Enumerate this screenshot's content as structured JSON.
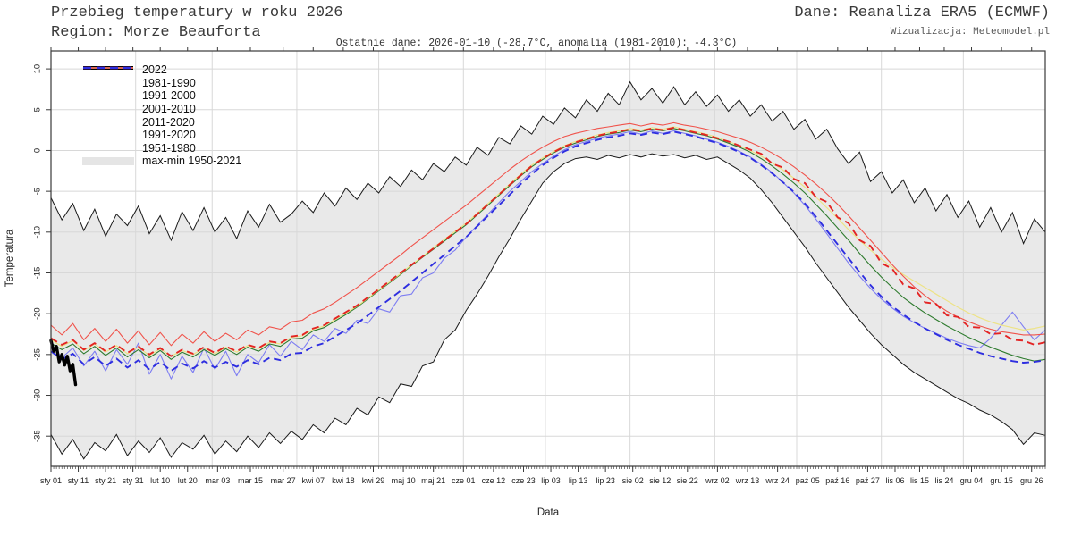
{
  "header": {
    "title": "Przebieg temperatury w roku 2026",
    "region": "Region: Morze Beauforta",
    "source": "Dane: Reanaliza ERA5 (ECMWF)",
    "visualization": "Wizualizacja: Meteomodel.pl",
    "subtitle": "Ostatnie dane: 2026-01-10 (-28.7°C, anomalia (1981-2010): -4.3°C)"
  },
  "chart_data": {
    "type": "line",
    "title": "Przebieg temperatury w roku 2026",
    "xlabel": "Data",
    "ylabel": "Temperatura",
    "ylim": [
      -38.7,
      12.2
    ],
    "x_unit": "day_of_year",
    "grid": true,
    "legend_position": "top-left",
    "y_ticks": [
      10,
      5,
      0,
      -5,
      -10,
      -15,
      -20,
      -25,
      -30,
      -35
    ],
    "x_ticks": [
      {
        "day": 1,
        "label": "sty 01"
      },
      {
        "day": 11,
        "label": "sty 11"
      },
      {
        "day": 21,
        "label": "sty 21"
      },
      {
        "day": 31,
        "label": "sty 31"
      },
      {
        "day": 41,
        "label": "lut 10"
      },
      {
        "day": 51,
        "label": "lut 20"
      },
      {
        "day": 62,
        "label": "mar 03"
      },
      {
        "day": 74,
        "label": "mar 15"
      },
      {
        "day": 86,
        "label": "mar 27"
      },
      {
        "day": 97,
        "label": "kwi 07"
      },
      {
        "day": 108,
        "label": "kwi 18"
      },
      {
        "day": 119,
        "label": "kwi 29"
      },
      {
        "day": 130,
        "label": "maj 10"
      },
      {
        "day": 141,
        "label": "maj 21"
      },
      {
        "day": 152,
        "label": "cze 01"
      },
      {
        "day": 163,
        "label": "cze 12"
      },
      {
        "day": 174,
        "label": "cze 23"
      },
      {
        "day": 184,
        "label": "lip 03"
      },
      {
        "day": 194,
        "label": "lip 13"
      },
      {
        "day": 204,
        "label": "lip 23"
      },
      {
        "day": 214,
        "label": "sie 02"
      },
      {
        "day": 224,
        "label": "sie 12"
      },
      {
        "day": 234,
        "label": "sie 22"
      },
      {
        "day": 245,
        "label": "wrz 02"
      },
      {
        "day": 256,
        "label": "wrz 13"
      },
      {
        "day": 267,
        "label": "wrz 24"
      },
      {
        "day": 278,
        "label": "paź 05"
      },
      {
        "day": 289,
        "label": "paź 16"
      },
      {
        "day": 300,
        "label": "paź 27"
      },
      {
        "day": 310,
        "label": "lis 06"
      },
      {
        "day": 319,
        "label": "lis 15"
      },
      {
        "day": 328,
        "label": "lis 24"
      },
      {
        "day": 338,
        "label": "gru 04"
      },
      {
        "day": 349,
        "label": "gru 15"
      },
      {
        "day": 360,
        "label": "gru 26"
      }
    ],
    "month_start_days": [
      32,
      60,
      91,
      121,
      152,
      182,
      213,
      244,
      274,
      305,
      335
    ],
    "x_days": [
      1,
      5,
      9,
      13,
      17,
      21,
      25,
      29,
      33,
      37,
      41,
      45,
      49,
      53,
      57,
      61,
      65,
      69,
      73,
      77,
      81,
      85,
      89,
      93,
      97,
      101,
      105,
      109,
      113,
      117,
      121,
      125,
      129,
      133,
      137,
      141,
      145,
      149,
      153,
      157,
      161,
      165,
      169,
      173,
      177,
      181,
      185,
      189,
      193,
      197,
      201,
      205,
      209,
      213,
      217,
      221,
      225,
      229,
      233,
      237,
      241,
      245,
      249,
      253,
      257,
      261,
      265,
      269,
      273,
      277,
      281,
      285,
      289,
      293,
      297,
      301,
      305,
      309,
      313,
      317,
      321,
      325,
      329,
      333,
      337,
      341,
      345,
      349,
      353,
      357,
      361,
      365
    ],
    "band": {
      "name": "max-min 1950-2021",
      "fill_color": "#e9e9e9",
      "edge_color": "#1a1a1a",
      "max": [
        -5.8,
        -8.5,
        -6.5,
        -9.8,
        -7.2,
        -10.5,
        -7.8,
        -9.2,
        -6.8,
        -10.2,
        -8.0,
        -11.0,
        -7.5,
        -9.8,
        -7.0,
        -10.0,
        -8.2,
        -10.8,
        -7.4,
        -9.4,
        -6.6,
        -8.8,
        -7.8,
        -6.2,
        -7.6,
        -5.2,
        -6.8,
        -4.6,
        -6.0,
        -4.0,
        -5.2,
        -3.2,
        -4.4,
        -2.4,
        -3.6,
        -1.6,
        -2.6,
        -0.8,
        -1.8,
        0.4,
        -0.6,
        1.6,
        0.8,
        3.0,
        2.0,
        4.2,
        3.2,
        5.2,
        4.0,
        6.2,
        4.8,
        7.0,
        5.6,
        8.4,
        6.2,
        7.6,
        5.8,
        7.8,
        5.6,
        7.2,
        5.4,
        6.8,
        4.8,
        6.2,
        4.2,
        5.6,
        3.6,
        4.8,
        2.6,
        3.8,
        1.4,
        2.6,
        0.2,
        -1.6,
        -0.2,
        -3.8,
        -2.6,
        -5.2,
        -3.6,
        -6.4,
        -4.6,
        -7.4,
        -5.4,
        -8.2,
        -6.2,
        -9.4,
        -7.0,
        -10.0,
        -7.6,
        -11.4,
        -8.4,
        -10.0
      ],
      "min": [
        -34.8,
        -37.2,
        -35.4,
        -37.8,
        -35.8,
        -36.8,
        -34.8,
        -37.4,
        -35.6,
        -37.0,
        -35.2,
        -37.6,
        -35.8,
        -36.6,
        -34.9,
        -37.2,
        -35.6,
        -36.9,
        -35.0,
        -36.4,
        -34.6,
        -35.9,
        -34.4,
        -35.4,
        -33.6,
        -34.6,
        -32.8,
        -33.6,
        -31.6,
        -32.4,
        -30.2,
        -30.9,
        -28.6,
        -28.9,
        -26.4,
        -25.9,
        -23.2,
        -22.0,
        -19.6,
        -17.6,
        -15.4,
        -13.0,
        -10.8,
        -8.4,
        -6.2,
        -4.0,
        -2.6,
        -1.6,
        -1.0,
        -0.8,
        -1.1,
        -0.6,
        -0.9,
        -0.5,
        -0.8,
        -0.4,
        -0.7,
        -0.5,
        -0.9,
        -0.6,
        -1.1,
        -0.8,
        -1.6,
        -2.4,
        -3.4,
        -4.8,
        -6.4,
        -8.2,
        -10.0,
        -11.8,
        -13.8,
        -15.6,
        -17.4,
        -19.2,
        -20.8,
        -22.4,
        -23.8,
        -25.0,
        -26.2,
        -27.2,
        -28.0,
        -28.8,
        -29.6,
        -30.4,
        -31.0,
        -31.8,
        -32.4,
        -33.2,
        -34.2,
        -36.0,
        -34.6,
        -34.9
      ]
    },
    "series": [
      {
        "name": "1981-1990",
        "color": "#7d7df2",
        "style": "solid",
        "width": 1.1,
        "values": [
          -23.8,
          -25.4,
          -24.2,
          -26.4,
          -24.6,
          -27.0,
          -24.4,
          -26.2,
          -23.6,
          -27.4,
          -25.0,
          -28.0,
          -25.2,
          -27.2,
          -24.2,
          -26.8,
          -24.6,
          -27.6,
          -25.0,
          -26.0,
          -23.8,
          -25.2,
          -23.4,
          -24.4,
          -22.6,
          -23.4,
          -21.8,
          -22.4,
          -20.8,
          -21.2,
          -19.4,
          -19.8,
          -17.8,
          -17.6,
          -15.6,
          -15.0,
          -13.2,
          -12.2,
          -10.6,
          -9.2,
          -7.8,
          -6.4,
          -5.0,
          -3.8,
          -2.6,
          -1.6,
          -0.7,
          0.1,
          0.7,
          1.1,
          1.5,
          1.8,
          2.0,
          2.3,
          2.0,
          2.4,
          2.1,
          2.4,
          2.1,
          1.8,
          1.4,
          1.0,
          0.5,
          -0.1,
          -0.8,
          -1.7,
          -2.7,
          -3.9,
          -5.2,
          -6.7,
          -8.4,
          -10.2,
          -12.0,
          -13.8,
          -15.4,
          -16.9,
          -18.2,
          -19.3,
          -20.3,
          -21.1,
          -21.8,
          -22.4,
          -23.0,
          -23.5,
          -23.9,
          -24.2,
          -23.0,
          -21.4,
          -19.8,
          -21.6,
          -23.2,
          -22.0
        ]
      },
      {
        "name": "1991-2000",
        "color": "#2e7b2e",
        "style": "solid",
        "width": 1.1,
        "values": [
          -23.6,
          -24.4,
          -23.7,
          -24.9,
          -24.0,
          -25.1,
          -24.2,
          -25.3,
          -24.4,
          -25.4,
          -24.5,
          -25.6,
          -24.7,
          -25.3,
          -24.4,
          -25.1,
          -24.3,
          -25.0,
          -24.1,
          -24.6,
          -23.7,
          -24.0,
          -23.1,
          -23.0,
          -22.1,
          -21.7,
          -20.9,
          -20.1,
          -19.2,
          -18.2,
          -17.2,
          -16.2,
          -15.2,
          -14.1,
          -13.1,
          -12.1,
          -11.1,
          -10.1,
          -9.1,
          -7.9,
          -6.7,
          -5.5,
          -4.3,
          -3.1,
          -2.0,
          -1.1,
          -0.3,
          0.4,
          0.9,
          1.3,
          1.7,
          2.0,
          2.2,
          2.5,
          2.3,
          2.6,
          2.4,
          2.7,
          2.4,
          2.1,
          1.8,
          1.4,
          0.9,
          0.4,
          -0.2,
          -1.0,
          -1.9,
          -2.9,
          -4.0,
          -5.2,
          -6.6,
          -8.0,
          -9.5,
          -11.0,
          -12.6,
          -14.1,
          -15.5,
          -16.8,
          -18.0,
          -19.0,
          -19.9,
          -20.7,
          -21.5,
          -22.2,
          -22.9,
          -23.5,
          -24.1,
          -24.6,
          -25.1,
          -25.5,
          -25.8,
          -25.6
        ]
      },
      {
        "name": "2001-2010",
        "color": "#ede387",
        "style": "solid",
        "width": 1.2,
        "values": [
          -23.2,
          -24.0,
          -23.3,
          -24.5,
          -23.7,
          -24.7,
          -23.9,
          -24.9,
          -24.1,
          -25.1,
          -24.3,
          -25.2,
          -24.5,
          -25.0,
          -24.2,
          -24.9,
          -24.1,
          -24.7,
          -23.9,
          -24.3,
          -23.5,
          -23.7,
          -22.9,
          -22.7,
          -21.9,
          -21.5,
          -20.7,
          -19.9,
          -19.1,
          -18.1,
          -17.1,
          -16.1,
          -15.1,
          -14.0,
          -13.0,
          -11.9,
          -10.9,
          -9.9,
          -8.9,
          -7.7,
          -6.5,
          -5.3,
          -4.1,
          -2.9,
          -1.8,
          -0.9,
          -0.1,
          0.6,
          1.1,
          1.5,
          1.9,
          2.2,
          2.4,
          2.7,
          2.5,
          2.8,
          2.6,
          2.9,
          2.6,
          2.3,
          2.0,
          1.6,
          1.1,
          0.6,
          0.0,
          -0.7,
          -1.5,
          -2.4,
          -3.4,
          -4.5,
          -5.7,
          -7.0,
          -8.3,
          -9.7,
          -11.0,
          -12.2,
          -13.3,
          -14.3,
          -15.2,
          -16.0,
          -16.8,
          -17.6,
          -18.4,
          -19.2,
          -19.9,
          -20.5,
          -21.0,
          -21.4,
          -21.7,
          -22.0,
          -21.8,
          -21.5
        ]
      },
      {
        "name": "2011-2020",
        "color": "#f0534b",
        "style": "solid",
        "width": 1.1,
        "values": [
          -21.4,
          -22.6,
          -21.2,
          -23.2,
          -21.8,
          -23.4,
          -21.9,
          -23.6,
          -22.1,
          -23.8,
          -22.3,
          -23.9,
          -22.5,
          -23.6,
          -22.2,
          -23.4,
          -22.4,
          -23.2,
          -22.0,
          -22.6,
          -21.6,
          -21.9,
          -21.0,
          -20.8,
          -19.9,
          -19.4,
          -18.6,
          -17.7,
          -16.8,
          -15.8,
          -14.8,
          -13.8,
          -12.8,
          -11.7,
          -10.7,
          -9.7,
          -8.7,
          -7.7,
          -6.7,
          -5.6,
          -4.5,
          -3.4,
          -2.3,
          -1.3,
          -0.4,
          0.4,
          1.1,
          1.7,
          2.1,
          2.4,
          2.7,
          2.9,
          3.1,
          3.3,
          3.0,
          3.3,
          3.1,
          3.4,
          3.1,
          2.9,
          2.6,
          2.3,
          1.9,
          1.5,
          1.0,
          0.4,
          -0.3,
          -1.1,
          -2.0,
          -3.0,
          -4.1,
          -5.3,
          -6.6,
          -8.0,
          -9.5,
          -11.0,
          -12.5,
          -14.0,
          -15.4,
          -16.7,
          -17.8,
          -18.8,
          -19.7,
          -20.4,
          -21.0,
          -21.5,
          -21.9,
          -22.2,
          -22.4,
          -22.6,
          -22.6,
          -22.5
        ]
      },
      {
        "name": "1991-2020",
        "color": "#e32424",
        "style": "dashed",
        "width": 1.9,
        "values": [
          -23.0,
          -23.8,
          -23.2,
          -24.4,
          -23.6,
          -24.6,
          -23.8,
          -24.8,
          -24.0,
          -25.0,
          -24.2,
          -25.2,
          -24.4,
          -24.9,
          -24.1,
          -24.8,
          -24.0,
          -24.6,
          -23.8,
          -24.2,
          -23.4,
          -23.6,
          -22.8,
          -22.6,
          -21.8,
          -21.4,
          -20.6,
          -19.8,
          -19.0,
          -18.0,
          -17.0,
          -16.0,
          -15.0,
          -14.0,
          -13.0,
          -12.0,
          -11.0,
          -10.0,
          -9.0,
          -7.8,
          -6.6,
          -5.4,
          -4.2,
          -3.0,
          -1.9,
          -1.0,
          -0.2,
          0.5,
          1.0,
          1.4,
          1.8,
          2.1,
          2.3,
          2.6,
          2.4,
          2.7,
          2.5,
          2.8,
          2.5,
          2.2,
          1.9,
          1.5,
          1.1,
          0.6,
          0.1,
          -0.4,
          -1.6,
          -2.1,
          -3.5,
          -4.0,
          -5.7,
          -6.3,
          -8.2,
          -8.9,
          -11.0,
          -11.7,
          -13.8,
          -14.5,
          -16.4,
          -16.9,
          -18.6,
          -18.8,
          -20.2,
          -20.4,
          -21.6,
          -21.7,
          -22.5,
          -22.4,
          -23.2,
          -23.3,
          -23.8,
          -23.5
        ]
      },
      {
        "name": "1951-1980",
        "color": "#2e2ee0",
        "style": "dashed",
        "width": 1.9,
        "values": [
          -24.6,
          -25.6,
          -24.9,
          -26.2,
          -25.3,
          -26.4,
          -25.5,
          -26.6,
          -25.7,
          -26.8,
          -25.9,
          -27.0,
          -26.1,
          -26.7,
          -25.8,
          -26.6,
          -25.9,
          -26.5,
          -25.7,
          -26.2,
          -25.4,
          -25.7,
          -24.9,
          -24.8,
          -24.0,
          -23.6,
          -22.8,
          -22.0,
          -21.2,
          -20.2,
          -19.2,
          -18.2,
          -17.2,
          -16.1,
          -15.0,
          -13.9,
          -12.8,
          -11.7,
          -10.6,
          -9.3,
          -8.0,
          -6.7,
          -5.4,
          -4.1,
          -2.9,
          -1.8,
          -0.9,
          -0.1,
          0.5,
          0.9,
          1.3,
          1.6,
          1.8,
          2.1,
          1.9,
          2.2,
          2.0,
          2.3,
          2.0,
          1.7,
          1.3,
          0.9,
          0.4,
          -0.2,
          -0.9,
          -1.8,
          -2.8,
          -3.9,
          -5.1,
          -6.5,
          -8.1,
          -9.8,
          -11.5,
          -13.2,
          -14.9,
          -16.5,
          -17.9,
          -19.1,
          -20.1,
          -21.0,
          -21.8,
          -22.5,
          -23.2,
          -23.8,
          -24.3,
          -24.8,
          -25.2,
          -25.5,
          -25.8,
          -26.0,
          -25.9,
          -25.7
        ]
      }
    ],
    "series_2022": {
      "name": "2022",
      "color": "#000000",
      "width": 3.4,
      "x_days": [
        1,
        2,
        3,
        4,
        5,
        6,
        7,
        8,
        9,
        10
      ],
      "values": [
        -23.3,
        -24.6,
        -24.0,
        -25.9,
        -25.0,
        -26.3,
        -25.2,
        -27.0,
        -26.2,
        -28.7
      ]
    },
    "legend": [
      {
        "label": "2022",
        "style": "thick",
        "color": "#000000"
      },
      {
        "label": "1981-1990",
        "style": "solid",
        "color": "#7d7df2"
      },
      {
        "label": "1991-2000",
        "style": "solid",
        "color": "#2e7b2e"
      },
      {
        "label": "2001-2010",
        "style": "solid",
        "color": "#ede387"
      },
      {
        "label": "2011-2020",
        "style": "solid",
        "color": "#f0534b"
      },
      {
        "label": "1991-2020",
        "style": "dashed",
        "color": "#e32424"
      },
      {
        "label": "1951-1980",
        "style": "dashed",
        "color": "#2e2ee0"
      },
      {
        "label": "max-min 1950-2021",
        "style": "band",
        "color": "#e5e5e5"
      }
    ],
    "colors": {
      "grid": "#d8d8d8",
      "axis": "#3a3a3a",
      "tick_label": "#222222"
    }
  }
}
